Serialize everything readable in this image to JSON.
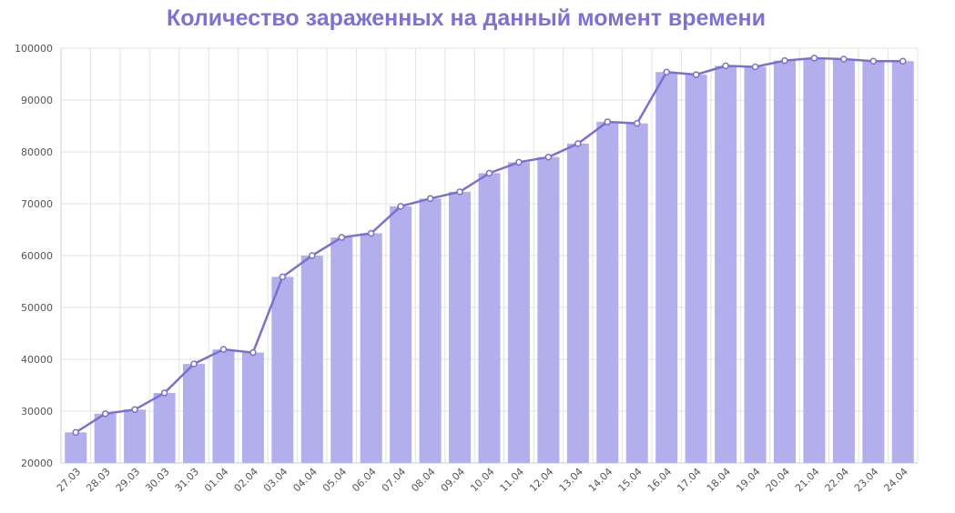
{
  "chart_data": {
    "type": "bar",
    "title": "Количество зараженных на данный момент времени",
    "xlabel": "",
    "ylabel": "",
    "ylim": [
      20000,
      100000
    ],
    "yticks": [
      20000,
      30000,
      40000,
      50000,
      60000,
      70000,
      80000,
      90000,
      100000
    ],
    "grid": true,
    "legend": "none",
    "colors": {
      "bar": "#b3aeec",
      "line": "#7b70d0",
      "title": "#7d72d0"
    },
    "categories": [
      "27.03",
      "28.03",
      "29.03",
      "30.03",
      "31.03",
      "01.04",
      "02.04",
      "03.04",
      "04.04",
      "05.04",
      "06.04",
      "07.04",
      "08.04",
      "09.04",
      "10.04",
      "11.04",
      "12.04",
      "13.04",
      "14.04",
      "15.04",
      "16.04",
      "17.04",
      "18.04",
      "19.04",
      "20.04",
      "21.04",
      "22.04",
      "23.04",
      "24.04"
    ],
    "series": [
      {
        "type": "bar",
        "values": [
          25900,
          29500,
          30300,
          33500,
          39100,
          41900,
          41300,
          55900,
          60000,
          63500,
          64300,
          69500,
          71000,
          72300,
          75900,
          78000,
          79000,
          81600,
          85800,
          85500,
          95400,
          94900,
          96600,
          96400,
          97600,
          98100,
          97900,
          97500,
          97500
        ]
      },
      {
        "type": "line",
        "values": [
          25900,
          29500,
          30300,
          33500,
          39100,
          41900,
          41300,
          55900,
          60000,
          63500,
          64300,
          69500,
          71000,
          72300,
          75900,
          78000,
          79000,
          81600,
          85800,
          85500,
          95400,
          94900,
          96600,
          96400,
          97600,
          98100,
          97900,
          97500,
          97500
        ]
      }
    ]
  }
}
